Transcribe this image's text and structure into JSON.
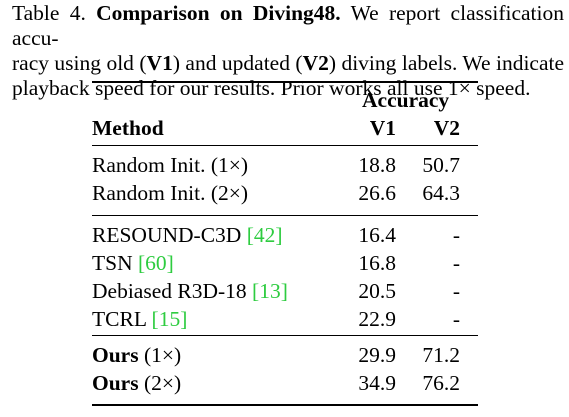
{
  "caption": {
    "label": "Table 4.",
    "title": "Comparison on Diving48.",
    "text_line1_rest": "We report classification accu-",
    "line2_a": "racy using old (",
    "line2_v1": "V1",
    "line2_b": ") and updated (",
    "line2_v2": "V2",
    "line2_c": ") diving labels.  We indicate",
    "line3": "playback speed for our results. Prior works all use 1× speed."
  },
  "table": {
    "header": {
      "accuracy": "Accuracy",
      "method": "Method",
      "v1": "V1",
      "v2": "V2"
    },
    "groups": [
      {
        "rows": [
          {
            "name": "Random Init.",
            "suffix": " (1×)",
            "bold_name": false,
            "cite": "",
            "v1": "18.8",
            "v2": "50.7"
          },
          {
            "name": "Random Init.",
            "suffix": " (2×)",
            "bold_name": false,
            "cite": "",
            "v1": "26.6",
            "v2": "64.3"
          }
        ]
      },
      {
        "rows": [
          {
            "name": "RESOUND-C3D ",
            "suffix": "",
            "bold_name": false,
            "cite": "[42]",
            "v1": "16.4",
            "v2": "-"
          },
          {
            "name": "TSN ",
            "suffix": "",
            "bold_name": false,
            "cite": "[60]",
            "v1": "16.8",
            "v2": "-"
          },
          {
            "name": "Debiased R3D-18 ",
            "suffix": "",
            "bold_name": false,
            "cite": "[13]",
            "v1": "20.5",
            "v2": "-"
          },
          {
            "name": "TCRL ",
            "suffix": "",
            "bold_name": false,
            "cite": "[15]",
            "v1": "22.9",
            "v2": "-"
          }
        ]
      },
      {
        "rows": [
          {
            "name": "Ours",
            "suffix": " (1×)",
            "bold_name": true,
            "cite": "",
            "v1": "29.9",
            "v2": "71.2"
          },
          {
            "name": "Ours",
            "suffix": " (2×)",
            "bold_name": true,
            "cite": "",
            "v1": "34.9",
            "v2": "76.2"
          }
        ]
      }
    ]
  }
}
